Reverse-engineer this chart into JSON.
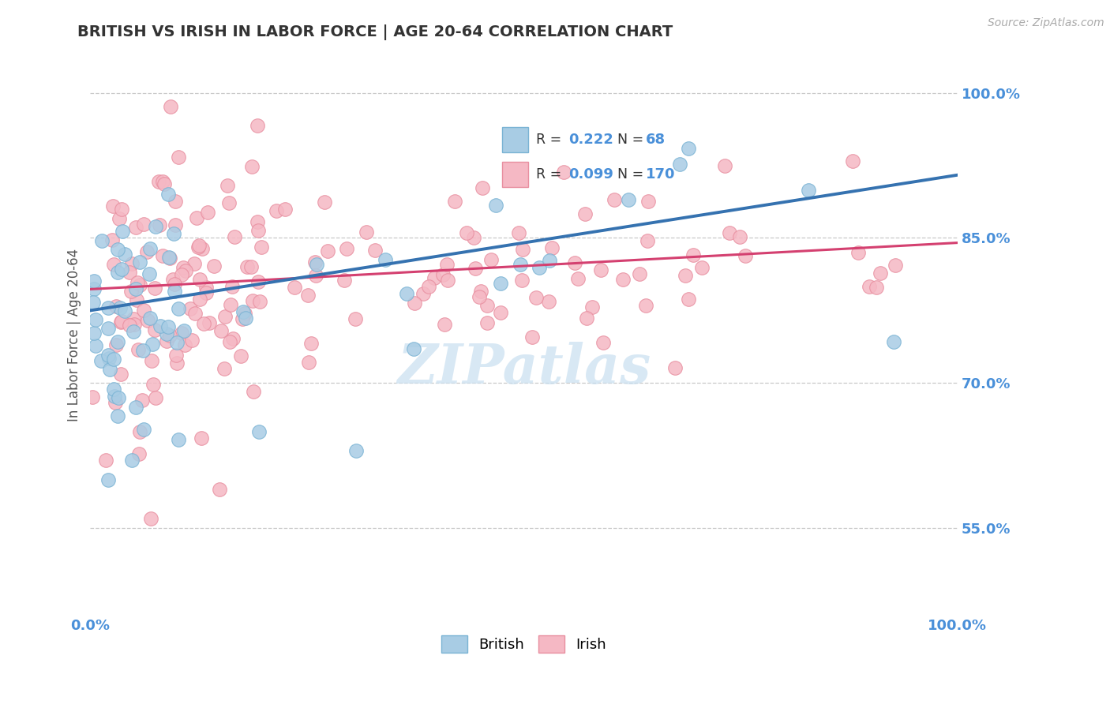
{
  "title": "BRITISH VS IRISH IN LABOR FORCE | AGE 20-64 CORRELATION CHART",
  "source_text": "Source: ZipAtlas.com",
  "ylabel": "In Labor Force | Age 20-64",
  "xlim": [
    0.0,
    1.0
  ],
  "ylim": [
    0.46,
    1.04
  ],
  "yticks": [
    0.55,
    0.7,
    0.85,
    1.0
  ],
  "ytick_labels": [
    "55.0%",
    "70.0%",
    "85.0%",
    "100.0%"
  ],
  "british_R": 0.222,
  "british_N": 68,
  "irish_R": 0.099,
  "irish_N": 170,
  "blue_fill": "#a8cce4",
  "blue_edge": "#7ab3d4",
  "pink_fill": "#f5b8c4",
  "pink_edge": "#e88fa0",
  "blue_line_color": "#3572b0",
  "pink_line_color": "#d44070",
  "title_color": "#333333",
  "axis_label_color": "#555555",
  "tick_label_color": "#4a90d9",
  "watermark_color": "#c8dff0",
  "grid_color": "#bbbbbb",
  "background_color": "#ffffff",
  "legend_box_color": "#f0f4f8",
  "legend_border_color": "#cccccc",
  "british_trend_x0": 0.0,
  "british_trend_y0": 0.775,
  "british_trend_x1": 1.0,
  "british_trend_y1": 0.915,
  "irish_trend_x0": 0.0,
  "irish_trend_y0": 0.797,
  "irish_trend_x1": 1.0,
  "irish_trend_y1": 0.845
}
